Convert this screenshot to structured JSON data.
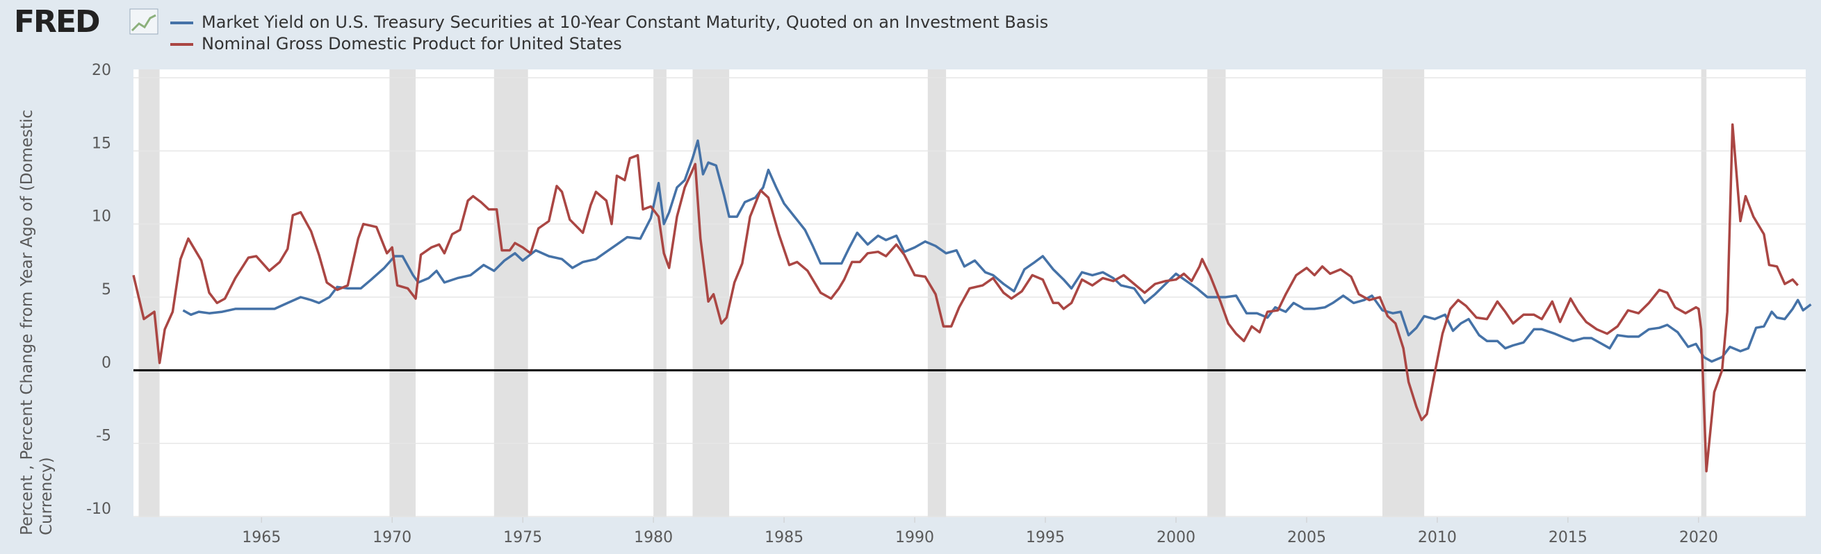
{
  "logo": "FRED",
  "chart_data": {
    "type": "line",
    "y_label": "Percent , Percent Change from Year Ago of (Domestic Currency)",
    "xlim": [
      1960.1,
      2024.1
    ],
    "xticks": [
      1965,
      1970,
      1975,
      1980,
      1985,
      1990,
      1995,
      2000,
      2005,
      2010,
      2015,
      2020
    ],
    "ylim": [
      -10,
      20
    ],
    "yticks": [
      20,
      15,
      10,
      5,
      0,
      -5,
      -10
    ],
    "grid": true,
    "recessions": [
      {
        "start": 1960.3,
        "end": 1961.1
      },
      {
        "start": 1969.9,
        "end": 1970.9
      },
      {
        "start": 1973.9,
        "end": 1975.2
      },
      {
        "start": 1980.0,
        "end": 1980.5
      },
      {
        "start": 1981.5,
        "end": 1982.9
      },
      {
        "start": 1990.5,
        "end": 1991.2
      },
      {
        "start": 2001.2,
        "end": 2001.9
      },
      {
        "start": 2007.9,
        "end": 2009.5
      },
      {
        "start": 2020.1,
        "end": 2020.3
      }
    ],
    "series": [
      {
        "name": "Market Yield on U.S. Treasury Securities at 10-Year Constant Maturity, Quoted on an Investment Basis",
        "color": "#4572a7",
        "x": [
          1962.0,
          1962.3,
          1962.6,
          1963.0,
          1963.5,
          1964.0,
          1964.5,
          1965.0,
          1965.5,
          1966.0,
          1966.5,
          1966.9,
          1967.2,
          1967.6,
          1967.9,
          1968.3,
          1968.8,
          1969.2,
          1969.7,
          1970.1,
          1970.4,
          1970.8,
          1971.0,
          1971.4,
          1971.7,
          1972.0,
          1972.5,
          1973.0,
          1973.5,
          1973.9,
          1974.3,
          1974.7,
          1975.0,
          1975.5,
          1976.0,
          1976.5,
          1976.9,
          1977.3,
          1977.8,
          1978.2,
          1978.6,
          1979.0,
          1979.5,
          1979.9,
          1980.2,
          1980.4,
          1980.6,
          1980.9,
          1981.2,
          1981.5,
          1981.7,
          1981.9,
          1982.1,
          1982.4,
          1982.7,
          1982.9,
          1983.2,
          1983.5,
          1983.9,
          1984.2,
          1984.4,
          1984.7,
          1985.0,
          1985.4,
          1985.8,
          1986.1,
          1986.4,
          1986.8,
          1987.2,
          1987.5,
          1987.8,
          1988.2,
          1988.6,
          1988.9,
          1989.3,
          1989.6,
          1990.0,
          1990.4,
          1990.8,
          1991.2,
          1991.6,
          1991.9,
          1992.3,
          1992.7,
          1993.0,
          1993.4,
          1993.8,
          1994.2,
          1994.6,
          1994.9,
          1995.3,
          1995.7,
          1996.0,
          1996.4,
          1996.8,
          1997.2,
          1997.6,
          1997.9,
          1998.4,
          1998.8,
          1999.2,
          1999.6,
          2000.0,
          2000.4,
          2000.8,
          2001.2,
          2001.6,
          2001.9,
          2002.3,
          2002.7,
          2003.1,
          2003.5,
          2003.8,
          2004.2,
          2004.5,
          2004.9,
          2005.3,
          2005.7,
          2006.0,
          2006.4,
          2006.8,
          2007.2,
          2007.5,
          2007.9,
          2008.3,
          2008.6,
          2008.9,
          2009.2,
          2009.5,
          2009.9,
          2010.3,
          2010.6,
          2010.9,
          2011.2,
          2011.6,
          2011.9,
          2012.3,
          2012.6,
          2012.9,
          2013.3,
          2013.7,
          2014.0,
          2014.5,
          2014.9,
          2015.2,
          2015.6,
          2015.9,
          2016.3,
          2016.6,
          2016.9,
          2017.3,
          2017.7,
          2018.1,
          2018.5,
          2018.8,
          2019.2,
          2019.6,
          2019.9,
          2020.2,
          2020.5,
          2020.9,
          2021.2,
          2021.6,
          2021.9,
          2022.2,
          2022.5,
          2022.8,
          2023.0,
          2023.3,
          2023.6,
          2023.8,
          2024.0,
          2024.3
        ],
        "values": [
          4.1,
          3.8,
          4.0,
          3.9,
          4.0,
          4.2,
          4.2,
          4.2,
          4.2,
          4.6,
          5.0,
          4.8,
          4.6,
          5.0,
          5.7,
          5.6,
          5.6,
          6.2,
          7.0,
          7.8,
          7.8,
          6.5,
          6.0,
          6.3,
          6.8,
          6.0,
          6.3,
          6.5,
          7.2,
          6.8,
          7.5,
          8.0,
          7.5,
          8.2,
          7.8,
          7.6,
          7.0,
          7.4,
          7.6,
          8.1,
          8.6,
          9.1,
          9.0,
          10.4,
          12.8,
          10.0,
          10.8,
          12.5,
          13.0,
          14.5,
          15.7,
          13.4,
          14.2,
          14.0,
          12.0,
          10.5,
          10.5,
          11.5,
          11.8,
          12.5,
          13.7,
          12.5,
          11.4,
          10.5,
          9.6,
          8.5,
          7.3,
          7.3,
          7.3,
          8.4,
          9.4,
          8.6,
          9.2,
          8.9,
          9.2,
          8.1,
          8.4,
          8.8,
          8.5,
          8.0,
          8.2,
          7.1,
          7.5,
          6.7,
          6.5,
          5.9,
          5.4,
          6.9,
          7.4,
          7.8,
          6.9,
          6.2,
          5.6,
          6.7,
          6.5,
          6.7,
          6.3,
          5.8,
          5.6,
          4.6,
          5.2,
          5.9,
          6.6,
          6.1,
          5.6,
          5.0,
          5.0,
          5.0,
          5.1,
          3.9,
          3.9,
          3.6,
          4.3,
          4.0,
          4.6,
          4.2,
          4.2,
          4.3,
          4.6,
          5.1,
          4.6,
          4.8,
          5.1,
          4.1,
          3.9,
          4.0,
          2.4,
          2.9,
          3.7,
          3.5,
          3.8,
          2.7,
          3.2,
          3.5,
          2.4,
          2.0,
          2.0,
          1.5,
          1.7,
          1.9,
          2.8,
          2.8,
          2.5,
          2.2,
          2.0,
          2.2,
          2.2,
          1.8,
          1.5,
          2.4,
          2.3,
          2.3,
          2.8,
          2.9,
          3.1,
          2.6,
          1.6,
          1.8,
          0.9,
          0.6,
          0.9,
          1.6,
          1.3,
          1.5,
          2.9,
          3.0,
          4.0,
          3.6,
          3.5,
          4.2,
          4.8,
          4.1,
          4.5
        ]
      },
      {
        "name": "Nominal Gross Domestic Product for United States",
        "color": "#aa4643",
        "x": [
          1960.1,
          1960.5,
          1960.9,
          1961.1,
          1961.3,
          1961.6,
          1961.9,
          1962.2,
          1962.7,
          1963.0,
          1963.3,
          1963.6,
          1964.0,
          1964.5,
          1964.8,
          1965.3,
          1965.7,
          1966.0,
          1966.2,
          1966.5,
          1966.9,
          1967.2,
          1967.5,
          1967.9,
          1968.3,
          1968.7,
          1968.9,
          1969.4,
          1969.8,
          1970.0,
          1970.2,
          1970.6,
          1970.9,
          1971.1,
          1971.5,
          1971.8,
          1972.0,
          1972.3,
          1972.6,
          1972.9,
          1973.1,
          1973.4,
          1973.7,
          1974.0,
          1974.2,
          1974.5,
          1974.7,
          1975.0,
          1975.3,
          1975.6,
          1976.0,
          1976.3,
          1976.5,
          1976.8,
          1977.3,
          1977.6,
          1977.8,
          1978.2,
          1978.4,
          1978.6,
          1978.9,
          1979.1,
          1979.4,
          1979.6,
          1979.9,
          1980.2,
          1980.4,
          1980.6,
          1980.9,
          1981.2,
          1981.6,
          1981.8,
          1982.1,
          1982.3,
          1982.6,
          1982.8,
          1983.1,
          1983.4,
          1983.7,
          1984.1,
          1984.4,
          1984.8,
          1985.2,
          1985.5,
          1985.9,
          1986.4,
          1986.8,
          1987.1,
          1987.3,
          1987.6,
          1987.9,
          1988.2,
          1988.6,
          1988.9,
          1989.3,
          1989.6,
          1990.0,
          1990.4,
          1990.8,
          1991.1,
          1991.4,
          1991.7,
          1992.1,
          1992.6,
          1993.0,
          1993.4,
          1993.7,
          1994.1,
          1994.5,
          1994.9,
          1995.3,
          1995.5,
          1995.7,
          1996.0,
          1996.4,
          1996.8,
          1997.2,
          1997.6,
          1998.0,
          1998.4,
          1998.8,
          1999.2,
          1999.6,
          2000.0,
          2000.3,
          2000.6,
          2000.9,
          2001.0,
          2001.3,
          2001.7,
          2002.0,
          2002.3,
          2002.6,
          2002.9,
          2003.2,
          2003.5,
          2003.9,
          2004.2,
          2004.6,
          2005.0,
          2005.3,
          2005.6,
          2005.9,
          2006.3,
          2006.7,
          2007.0,
          2007.4,
          2007.8,
          2008.1,
          2008.4,
          2008.7,
          2008.9,
          2009.2,
          2009.4,
          2009.6,
          2009.9,
          2010.2,
          2010.5,
          2010.8,
          2011.1,
          2011.5,
          2011.9,
          2012.3,
          2012.6,
          2012.9,
          2013.3,
          2013.7,
          2014.0,
          2014.4,
          2014.7,
          2015.1,
          2015.4,
          2015.7,
          2016.1,
          2016.5,
          2016.9,
          2017.3,
          2017.7,
          2018.1,
          2018.5,
          2018.8,
          2019.1,
          2019.5,
          2019.9,
          2020.0,
          2020.1,
          2020.3,
          2020.6,
          2020.9,
          2021.1,
          2021.3,
          2021.6,
          2021.8,
          2022.1,
          2022.5,
          2022.7,
          2023.0,
          2023.3,
          2023.6,
          2023.8
        ],
        "values": [
          6.5,
          3.5,
          4.0,
          0.5,
          2.8,
          4.0,
          7.6,
          9.0,
          7.5,
          5.3,
          4.6,
          4.9,
          6.3,
          7.7,
          7.8,
          6.8,
          7.4,
          8.3,
          10.6,
          10.8,
          9.5,
          7.9,
          6.0,
          5.5,
          5.8,
          9.0,
          10.0,
          9.8,
          8.0,
          8.4,
          5.8,
          5.6,
          4.9,
          7.9,
          8.4,
          8.6,
          8.0,
          9.3,
          9.6,
          11.6,
          11.9,
          11.5,
          11.0,
          11.0,
          8.2,
          8.2,
          8.7,
          8.4,
          8.0,
          9.7,
          10.2,
          12.6,
          12.2,
          10.3,
          9.4,
          11.3,
          12.2,
          11.6,
          10.0,
          13.3,
          13.0,
          14.5,
          14.7,
          11.0,
          11.2,
          10.5,
          8.0,
          7.0,
          10.5,
          12.5,
          14.1,
          9.0,
          4.7,
          5.2,
          3.2,
          3.6,
          6.0,
          7.3,
          10.5,
          12.3,
          11.8,
          9.3,
          7.2,
          7.4,
          6.8,
          5.3,
          4.9,
          5.6,
          6.2,
          7.4,
          7.4,
          8.0,
          8.1,
          7.8,
          8.6,
          7.9,
          6.5,
          6.4,
          5.2,
          3.0,
          3.0,
          4.3,
          5.6,
          5.8,
          6.3,
          5.3,
          4.9,
          5.4,
          6.5,
          6.2,
          4.6,
          4.6,
          4.2,
          4.6,
          6.2,
          5.8,
          6.3,
          6.1,
          6.5,
          5.9,
          5.3,
          5.9,
          6.1,
          6.2,
          6.6,
          6.1,
          7.1,
          7.6,
          6.5,
          4.7,
          3.2,
          2.5,
          2.0,
          3.0,
          2.6,
          4.0,
          4.1,
          5.2,
          6.5,
          7.0,
          6.5,
          7.1,
          6.6,
          6.9,
          6.4,
          5.2,
          4.8,
          5.0,
          3.7,
          3.2,
          1.5,
          -0.8,
          -2.5,
          -3.4,
          -3.0,
          -0.2,
          2.5,
          4.2,
          4.8,
          4.4,
          3.6,
          3.5,
          4.7,
          4.0,
          3.2,
          3.8,
          3.8,
          3.5,
          4.7,
          3.3,
          4.9,
          4.0,
          3.3,
          2.8,
          2.5,
          3.0,
          4.1,
          3.9,
          4.6,
          5.5,
          5.3,
          4.3,
          3.9,
          4.3,
          4.2,
          2.8,
          -6.9,
          -1.5,
          0.0,
          4.0,
          16.8,
          10.2,
          11.9,
          10.5,
          9.3,
          7.2,
          7.1,
          5.9,
          6.2,
          5.8
        ]
      }
    ]
  }
}
